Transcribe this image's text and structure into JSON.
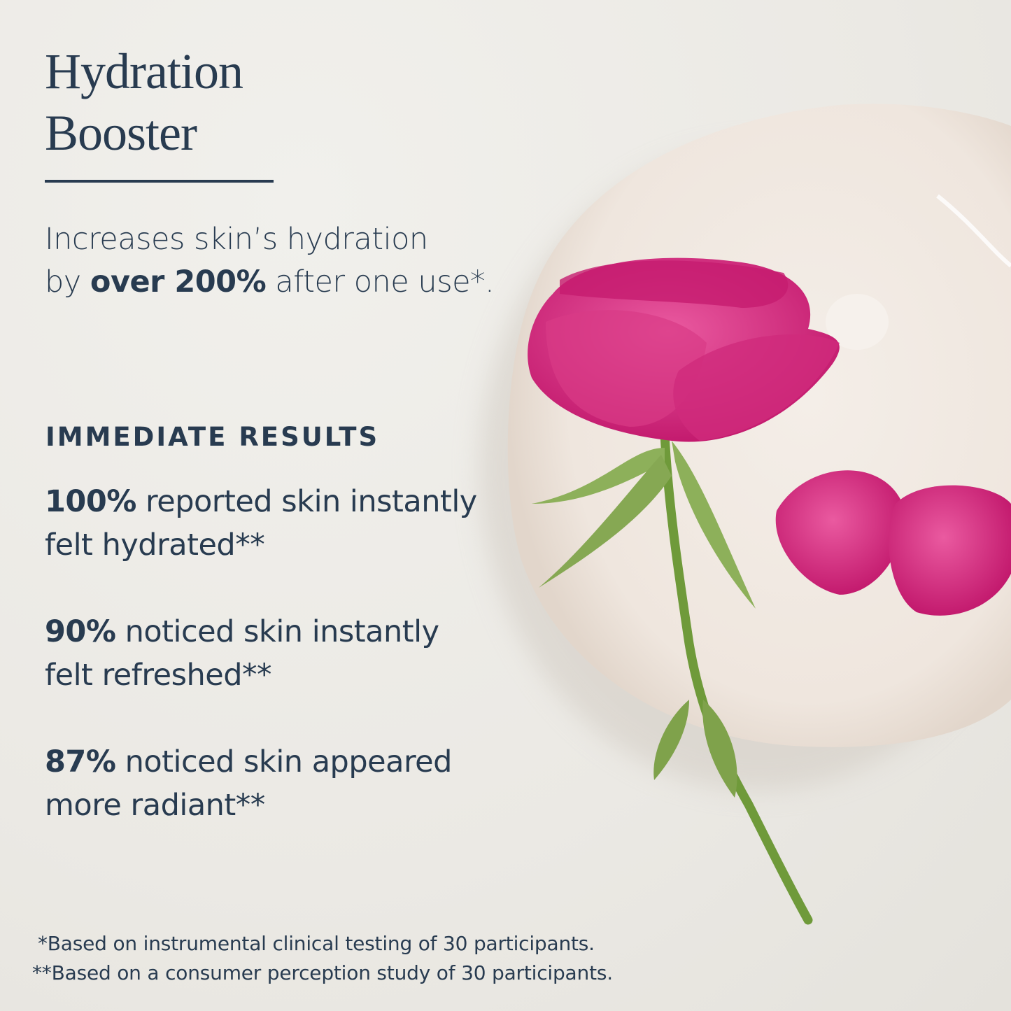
{
  "title": {
    "line1": "Hydration",
    "line2": "Booster"
  },
  "intro": {
    "line1": "Increases skin’s hydration",
    "line2_prefix": "by ",
    "line2_bold": "over 200%",
    "line2_suffix": " after one use*."
  },
  "section_heading": "IMMEDIATE RESULTS",
  "stats": [
    {
      "value": "100%",
      "line1": " reported skin instantly",
      "line2": "felt hydrated**"
    },
    {
      "value": "90%",
      "line1": " noticed skin instantly",
      "line2": "felt refreshed**"
    },
    {
      "value": "87%",
      "line1": " noticed skin appeared",
      "line2": "more radiant**"
    }
  ],
  "footnotes": [
    "*Based on instrumental clinical testing of 30 participants.",
    "**Based on a consumer perception study of 30 participants."
  ],
  "colors": {
    "text": "#283b50",
    "background": "#ebe9e4",
    "rose": "#d61f78",
    "stem": "#6f9a3a"
  }
}
